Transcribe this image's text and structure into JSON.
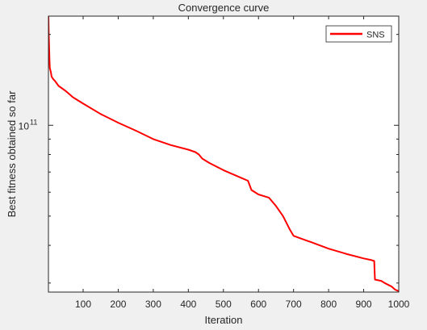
{
  "chart_data": {
    "type": "line",
    "title": "Convergence curve",
    "xlabel": "Iteration",
    "ylabel": "Best fitness obtained so far",
    "yscale": "log",
    "xlim": [
      1,
      1000
    ],
    "ylim": [
      28000000000.0,
      230000000000.0
    ],
    "xticks": [
      100,
      200,
      300,
      400,
      500,
      600,
      700,
      800,
      900,
      1000
    ],
    "ytick_major": {
      "value": 100000000000.0,
      "base": "10",
      "exponent": "11"
    },
    "yticks_minor": [
      30000000000.0,
      40000000000.0,
      50000000000.0,
      60000000000.0,
      70000000000.0,
      80000000000.0,
      90000000000.0,
      200000000000.0
    ],
    "grid": false,
    "legend": {
      "position": "top-right",
      "entries": [
        "SNS"
      ]
    },
    "series": [
      {
        "name": "SNS",
        "color": "#ff0000",
        "x": [
          1,
          2,
          3,
          4,
          5,
          8,
          10,
          15,
          20,
          30,
          50,
          60,
          70,
          80,
          100,
          150,
          200,
          250,
          300,
          350,
          400,
          420,
          430,
          440,
          460,
          500,
          550,
          570,
          580,
          600,
          620,
          630,
          650,
          670,
          690,
          700,
          750,
          800,
          850,
          900,
          920,
          930,
          932,
          950,
          960,
          980,
          990,
          1000
        ],
        "y": [
          230000000000.0,
          200000000000.0,
          180000000000.0,
          165000000000.0,
          155000000000.0,
          150000000000.0,
          145000000000.0,
          142000000000.0,
          140000000000.0,
          135000000000.0,
          130000000000.0,
          127000000000.0,
          124000000000.0,
          122000000000.0,
          118000000000.0,
          109000000000.0,
          102000000000.0,
          96000000000.0,
          90000000000.0,
          86000000000.0,
          83000000000.0,
          81500000000.0,
          80000000000.0,
          77500000000.0,
          75000000000.0,
          71000000000.0,
          67000000000.0,
          65500000000.0,
          61000000000.0,
          59000000000.0,
          58000000000.0,
          57500000000.0,
          54000000000.0,
          50000000000.0,
          45000000000.0,
          43000000000.0,
          41000000000.0,
          39000000000.0,
          37500000000.0,
          36200000000.0,
          35800000000.0,
          35500000000.0,
          30800000000.0,
          30500000000.0,
          30000000000.0,
          29200000000.0,
          28500000000.0,
          28200000000.0
        ]
      }
    ]
  }
}
